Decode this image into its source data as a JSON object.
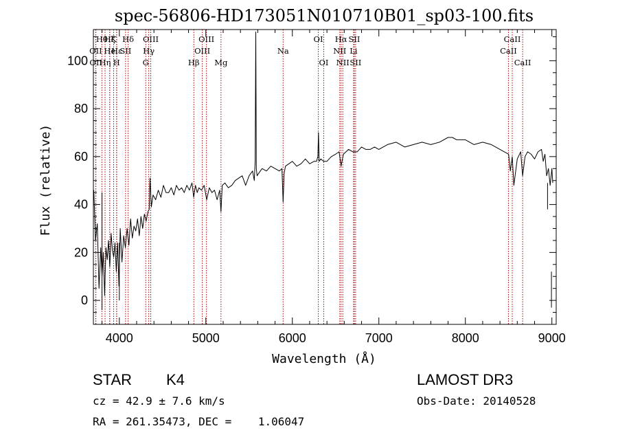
{
  "chart_data": {
    "type": "line",
    "title": "spec-56806-HD173051N010710B01_sp03-100.fits",
    "xlabel": "Wavelength (Å)",
    "ylabel": "Flux (relative)",
    "xlim": [
      3700,
      9050
    ],
    "ylim": [
      -10,
      113
    ],
    "xticks": [
      4000,
      5000,
      6000,
      7000,
      8000,
      9000
    ],
    "yticks": [
      0,
      20,
      40,
      60,
      80,
      100
    ],
    "series": [
      {
        "name": "flux",
        "x": [
          3705,
          3725,
          3745,
          3765,
          3785,
          3800,
          3815,
          3830,
          3845,
          3860,
          3875,
          3890,
          3905,
          3920,
          3935,
          3950,
          3965,
          3980,
          3995,
          4010,
          4030,
          4050,
          4070,
          4090,
          4110,
          4130,
          4150,
          4170,
          4190,
          4210,
          4230,
          4250,
          4270,
          4290,
          4310,
          4330,
          4345,
          4355,
          4370,
          4390,
          4420,
          4450,
          4480,
          4510,
          4540,
          4570,
          4600,
          4630,
          4660,
          4690,
          4720,
          4750,
          4780,
          4810,
          4840,
          4860,
          4880,
          4900,
          4920,
          4950,
          4980,
          5010,
          5040,
          5070,
          5100,
          5130,
          5160,
          5175,
          5190,
          5220,
          5260,
          5300,
          5340,
          5380,
          5420,
          5460,
          5500,
          5540,
          5560,
          5570,
          5577,
          5584,
          5592,
          5610,
          5650,
          5700,
          5750,
          5800,
          5850,
          5880,
          5893,
          5905,
          5920,
          5960,
          6000,
          6050,
          6100,
          6150,
          6200,
          6250,
          6280,
          6295,
          6302,
          6310,
          6330,
          6360,
          6400,
          6450,
          6500,
          6540,
          6563,
          6590,
          6620,
          6650,
          6700,
          6750,
          6800,
          6850,
          6900,
          6950,
          7000,
          7100,
          7200,
          7300,
          7400,
          7500,
          7600,
          7700,
          7800,
          7850,
          7900,
          8000,
          8100,
          8200,
          8300,
          8400,
          8450,
          8500,
          8520,
          8542,
          8560,
          8600,
          8640,
          8662,
          8690,
          8720,
          8760,
          8800,
          8840,
          8880,
          8900,
          8920,
          8940,
          8960,
          8980,
          9000,
          9010
        ],
        "values": [
          46,
          25,
          32,
          5,
          22,
          10,
          20,
          2,
          22,
          17,
          25,
          14,
          28,
          21,
          18,
          24,
          12,
          24,
          6,
          30,
          16,
          27,
          22,
          30,
          23,
          34,
          26,
          31,
          29,
          34,
          27,
          35,
          30,
          36,
          33,
          37,
          38,
          51,
          39,
          44,
          42,
          46,
          43,
          48,
          45,
          45,
          47,
          44,
          48,
          46,
          47,
          45,
          48,
          46,
          49,
          43,
          48,
          45,
          47,
          46,
          48,
          42,
          47,
          45,
          46,
          42,
          46,
          37,
          48,
          49,
          47,
          48,
          50,
          51,
          52,
          48,
          52,
          54,
          50,
          58,
          112,
          55,
          52,
          53,
          55,
          54,
          56,
          55,
          54,
          55,
          41,
          53,
          56,
          57,
          58,
          56,
          57,
          59,
          57,
          58,
          58,
          60,
          70,
          58,
          59,
          58,
          58,
          60,
          61,
          62,
          56,
          61,
          62,
          63,
          62,
          62,
          64,
          63,
          63,
          64,
          63,
          65,
          66,
          64,
          65,
          66,
          65,
          66,
          68,
          68,
          67,
          67,
          65,
          66,
          65,
          63,
          62,
          61,
          54,
          60,
          48,
          59,
          62,
          52,
          60,
          62,
          61,
          59,
          62,
          63,
          58,
          61,
          52,
          55,
          48,
          55,
          49
        ]
      }
    ],
    "extra_spikes": [
      {
        "x": 3800,
        "y0": -4,
        "y1": 45
      },
      {
        "x": 4000,
        "y0": 0,
        "y1": 24
      },
      {
        "x": 8950,
        "y0": 49,
        "y1": 38
      },
      {
        "x": 8995,
        "y0": -3,
        "y1": 12
      }
    ],
    "lines": [
      {
        "label": "Hθ",
        "wl": 3798,
        "row": 0
      },
      {
        "label": "OII",
        "wl": 3727,
        "row": 1
      },
      {
        "label": "OII",
        "wl": 3729,
        "row": 2
      },
      {
        "label": "Hη",
        "wl": 3835,
        "row": 2
      },
      {
        "label": "Hζ",
        "wl": 3889,
        "row": 0
      },
      {
        "label": "He",
        "wl": 3889,
        "row": 1
      },
      {
        "label": "K",
        "wl": 3934,
        "row": 0
      },
      {
        "label": "Hε",
        "wl": 3970,
        "row": 1
      },
      {
        "label": "H",
        "wl": 3968,
        "row": 2
      },
      {
        "label": "SII",
        "wl": 4072,
        "row": 1
      },
      {
        "label": "Hδ",
        "wl": 4102,
        "row": 0
      },
      {
        "label": "OIII",
        "wl": 4363,
        "row": 0
      },
      {
        "label": "Hγ",
        "wl": 4340,
        "row": 1
      },
      {
        "label": "G",
        "wl": 4305,
        "row": 2
      },
      {
        "label": "Hβ",
        "wl": 4861,
        "row": 2
      },
      {
        "label": "OIII",
        "wl": 5007,
        "row": 0
      },
      {
        "label": "OIII",
        "wl": 4959,
        "row": 1
      },
      {
        "label": "Mg",
        "wl": 5175,
        "row": 2
      },
      {
        "label": "Na",
        "wl": 5893,
        "row": 1
      },
      {
        "label": "OI",
        "wl": 6300,
        "row": 0
      },
      {
        "label": "OI",
        "wl": 6363,
        "row": 2
      },
      {
        "label": "Hα",
        "wl": 6563,
        "row": 0
      },
      {
        "label": "NII",
        "wl": 6548,
        "row": 1
      },
      {
        "label": "NII",
        "wl": 6583,
        "row": 2
      },
      {
        "label": "SII",
        "wl": 6716,
        "row": 0
      },
      {
        "label": "Li",
        "wl": 6708,
        "row": 1
      },
      {
        "label": "SII",
        "wl": 6731,
        "row": 2
      },
      {
        "label": "CaII",
        "wl": 8542,
        "row": 0
      },
      {
        "label": "CaII",
        "wl": 8498,
        "row": 1
      },
      {
        "label": "CaII",
        "wl": 8662,
        "row": 2
      }
    ],
    "colors": {
      "spectrum": "#000000",
      "marker": "#aa0000",
      "axes": "#000000"
    }
  },
  "info": {
    "object_class": "STAR",
    "subclass": "K4",
    "survey": "LAMOST DR3",
    "velocity": "cz = 42.9 ± 7.6 km/s",
    "obs_date": "Obs-Date: 20140528",
    "coords": "RA = 261.35473, DEC =    1.06047"
  }
}
